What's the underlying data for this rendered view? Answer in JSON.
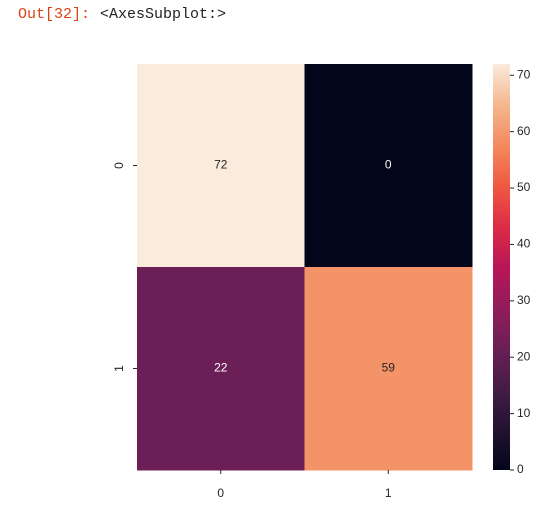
{
  "prompt": "Out[32]:",
  "output_text": "<AxesSubplot:>",
  "chart_data": {
    "type": "heatmap",
    "colormap": "rocket",
    "x_categories": [
      "0",
      "1"
    ],
    "y_categories": [
      "0",
      "1"
    ],
    "values": [
      [
        72,
        0
      ],
      [
        22,
        59
      ]
    ],
    "clim": [
      0,
      72
    ],
    "cticks": [
      0,
      10,
      20,
      30,
      40,
      50,
      60,
      70
    ]
  }
}
